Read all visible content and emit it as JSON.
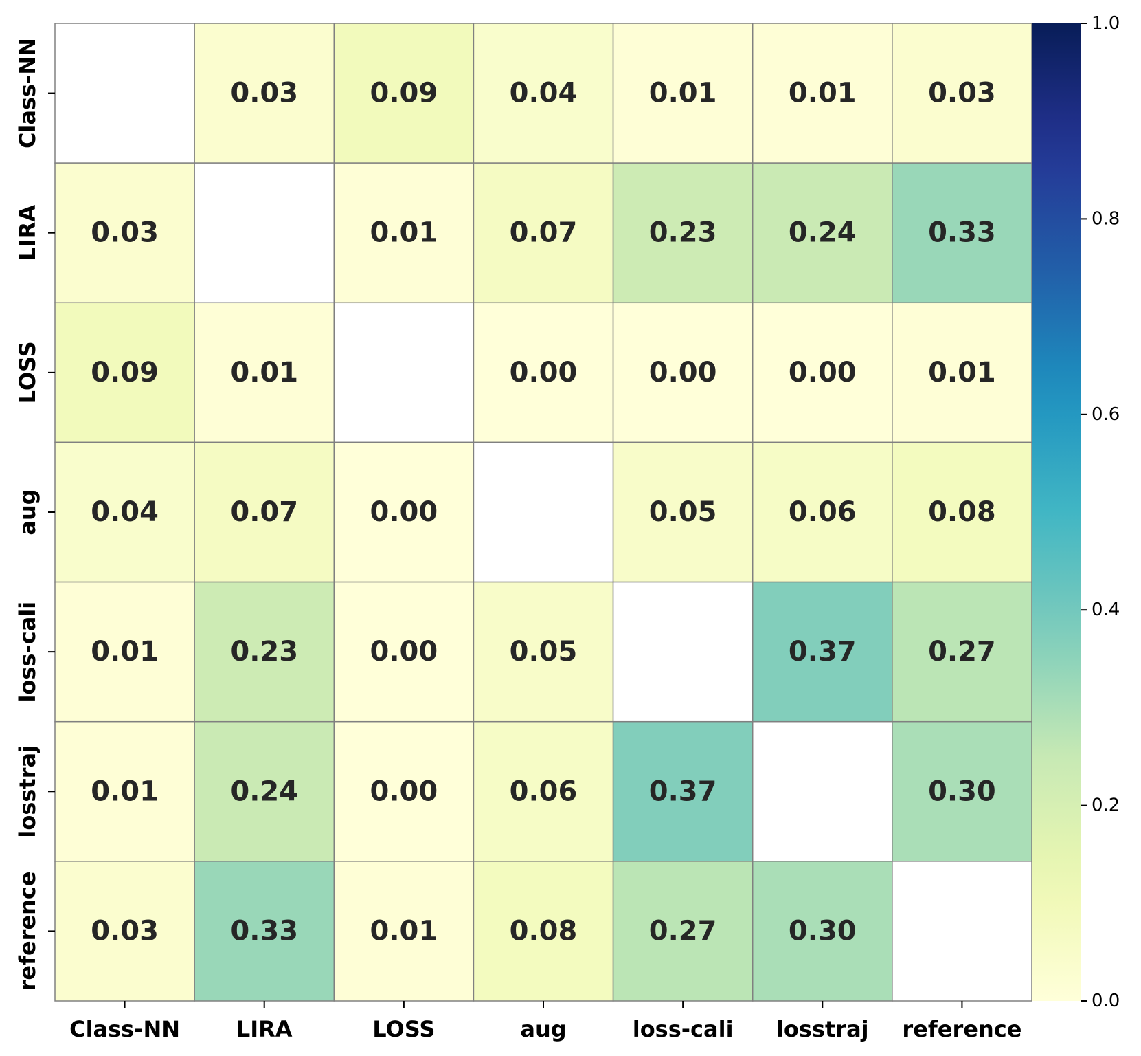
{
  "chart_data": {
    "type": "heatmap",
    "labels": [
      "Class-NN",
      "LIRA",
      "LOSS",
      "aug",
      "loss-cali",
      "losstraj",
      "reference"
    ],
    "matrix": [
      [
        null,
        0.03,
        0.09,
        0.04,
        0.01,
        0.01,
        0.03
      ],
      [
        0.03,
        null,
        0.01,
        0.07,
        0.23,
        0.24,
        0.33
      ],
      [
        0.09,
        0.01,
        null,
        0.0,
        0.0,
        0.0,
        0.01
      ],
      [
        0.04,
        0.07,
        0.0,
        null,
        0.05,
        0.06,
        0.08
      ],
      [
        0.01,
        0.23,
        0.0,
        0.05,
        null,
        0.37,
        0.27
      ],
      [
        0.01,
        0.24,
        0.0,
        0.06,
        0.37,
        null,
        0.3
      ],
      [
        0.03,
        0.33,
        0.01,
        0.08,
        0.27,
        0.3,
        null
      ]
    ],
    "value_format": "0.00",
    "diagonal": "blank",
    "colormap": "YlGnBu",
    "vmin": 0.0,
    "vmax": 1.0,
    "colorbar_ticks": [
      0.0,
      0.2,
      0.4,
      0.6,
      0.8,
      1.0
    ],
    "colorbar_tick_labels": [
      "0.0",
      "0.2",
      "0.4",
      "0.6",
      "0.8",
      "1.0"
    ],
    "colorbar_position": "right",
    "cell_border_color": "#808080",
    "annotation_color": "#262626"
  }
}
